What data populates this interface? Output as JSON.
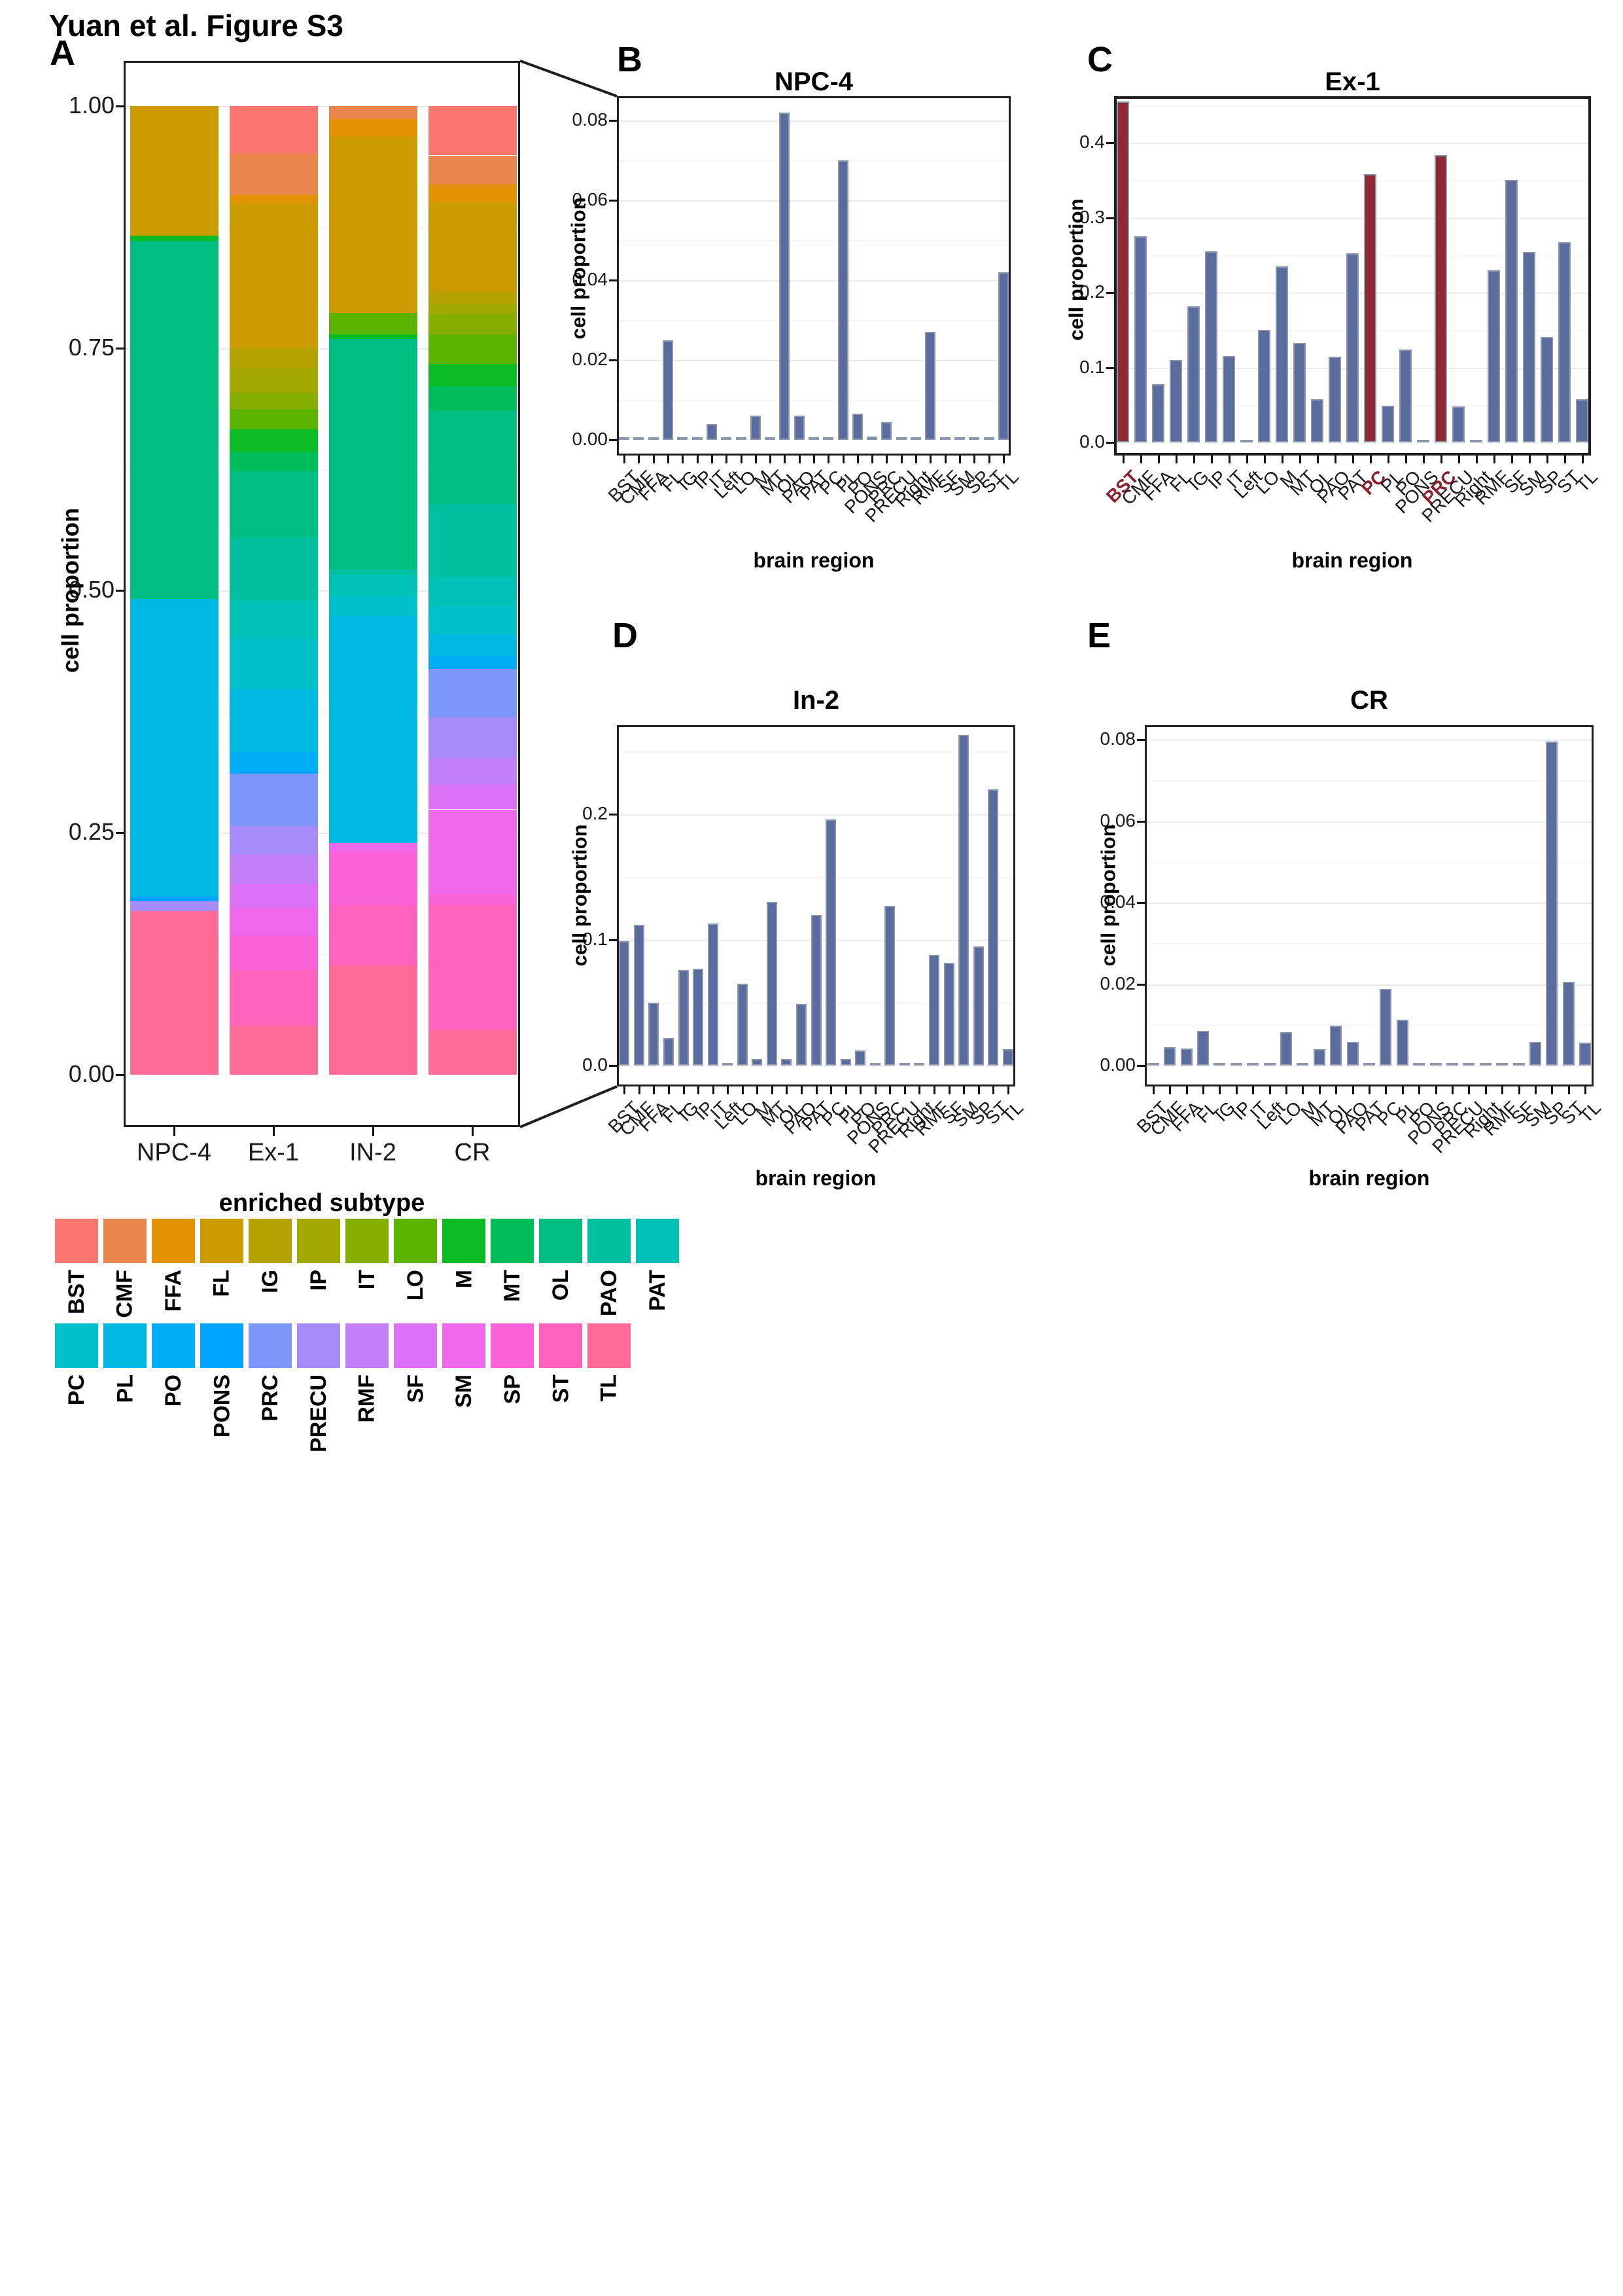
{
  "page": {
    "title": "Yuan et al. Figure S3"
  },
  "region_colors": {
    "BST": "#F8766D",
    "CMF": "#E9864B",
    "FFA": "#E29100",
    "FL": "#CB9B00",
    "IG": "#B4A200",
    "IP": "#A4A900",
    "IT": "#84AD00",
    "LO": "#5BB300",
    "M": "#0ABB23",
    "MT": "#00BC59",
    "OL": "#00BE80",
    "PAO": "#00C0A0",
    "PAT": "#00C1B6",
    "PC": "#00C0CC",
    "PL": "#00B9E3",
    "PO": "#00AEF5",
    "PONS": "#00A3FF",
    "PRC": "#7D96FA",
    "PRECU": "#A78BFA",
    "RMF": "#C27FF8",
    "SF": "#DB72F5",
    "SM": "#EE68E9",
    "SP": "#FA62D7",
    "ST": "#FF63BB",
    "TL": "#FF6B94"
  },
  "style": {
    "bar_fill": "#5A6B9D",
    "bar_stroke": "#8C97AC",
    "bar_highlight": "#8F2A35",
    "red_label": "#8B1F2C",
    "grid_major": "#EBEBEB",
    "grid_minor": "#F5F5F5",
    "box_border": "#1f1f1f"
  },
  "chart_data": [
    {
      "id": "A",
      "panel_letter": "A",
      "type": "bar",
      "stacked": true,
      "title": "",
      "xlabel": "enriched subtype",
      "ylabel": "cell proportion",
      "categories": [
        "NPC-4",
        "Ex-1",
        "IN-2",
        "CR"
      ],
      "ylim": [
        0,
        1
      ],
      "yticks": [
        {
          "v": 0,
          "label": "0.00"
        },
        {
          "v": 0.25,
          "label": "0.25"
        },
        {
          "v": 0.5,
          "label": "0.50"
        },
        {
          "v": 0.75,
          "label": "0.75"
        },
        {
          "v": 1,
          "label": "1.00"
        }
      ],
      "yminor": [
        0.125,
        0.375,
        0.625,
        0.875
      ],
      "series": [
        {
          "name": "BST",
          "values": [
            0,
            0.049,
            0,
            0.051
          ]
        },
        {
          "name": "CMF",
          "values": [
            0,
            0.043,
            0.0135,
            0.03
          ]
        },
        {
          "name": "FFA",
          "values": [
            0,
            0.008,
            0.018,
            0.018
          ]
        },
        {
          "name": "FL",
          "values": [
            0.134,
            0.15,
            0.182,
            0.093
          ]
        },
        {
          "name": "IG",
          "values": [
            0,
            0.021,
            0,
            0.012
          ]
        },
        {
          "name": "IP",
          "values": [
            0,
            0.025,
            0,
            0.01
          ]
        },
        {
          "name": "IT",
          "values": [
            0,
            0.017,
            0,
            0.022
          ]
        },
        {
          "name": "LO",
          "values": [
            0,
            0.021,
            0.022,
            0.03
          ]
        },
        {
          "name": "M",
          "values": [
            0.005,
            0.023,
            0.005,
            0.023
          ]
        },
        {
          "name": "MT",
          "values": [
            0,
            0.02,
            0,
            0.025
          ]
        },
        {
          "name": "OL",
          "values": [
            0.37,
            0.068,
            0.238,
            0.097
          ]
        },
        {
          "name": "PAO",
          "values": [
            0,
            0.065,
            0.005,
            0.075
          ]
        },
        {
          "name": "PAT",
          "values": [
            0,
            0.04,
            0.022,
            0.03
          ]
        },
        {
          "name": "PC",
          "values": [
            0,
            0.052,
            0.021,
            0.03
          ]
        },
        {
          "name": "PL",
          "values": [
            0.307,
            0.065,
            0.2345,
            0.022
          ]
        },
        {
          "name": "PO",
          "values": [
            0,
            0.02,
            0,
            0.011
          ]
        },
        {
          "name": "PONS",
          "values": [
            0.005,
            0.002,
            0,
            0.002
          ]
        },
        {
          "name": "PRC",
          "values": [
            0,
            0.054,
            0,
            0.05
          ]
        },
        {
          "name": "PRECU",
          "values": [
            0.01,
            0.03,
            0,
            0.042
          ]
        },
        {
          "name": "RMF",
          "values": [
            0,
            0.03,
            0,
            0.028
          ]
        },
        {
          "name": "SF",
          "values": [
            0,
            0.025,
            0,
            0.025
          ]
        },
        {
          "name": "SM",
          "values": [
            0,
            0.028,
            0.01,
            0.088
          ]
        },
        {
          "name": "SP",
          "values": [
            0,
            0.036,
            0.054,
            0.011
          ]
        },
        {
          "name": "ST",
          "values": [
            0,
            0.057,
            0.062,
            0.129
          ]
        },
        {
          "name": "TL",
          "values": [
            0.169,
            0.051,
            0.113,
            0.046
          ]
        }
      ]
    },
    {
      "id": "B",
      "panel_letter": "B",
      "type": "bar",
      "title": "NPC-4",
      "xlabel": "brain region",
      "ylabel": "cell proportion",
      "categories": [
        "BST",
        "CMF",
        "FFA",
        "FL",
        "IG",
        "IP",
        "IT",
        "Left",
        "LO",
        "M",
        "MT",
        "OL",
        "PAO",
        "PAT",
        "PC",
        "PL",
        "PO",
        "PONS",
        "PRC",
        "PRECU",
        "Right",
        "RMF",
        "SF",
        "SM",
        "SP",
        "ST",
        "TL"
      ],
      "values": [
        0.0002,
        0.0002,
        0.0002,
        0.025,
        0.0002,
        0.0002,
        0.004,
        0.0002,
        0.0002,
        0.006,
        0.0002,
        0.082,
        0.006,
        0.0002,
        0.0002,
        0.07,
        0.0065,
        0.0008,
        0.0045,
        0.0002,
        0.0002,
        0.027,
        0.0002,
        0.0002,
        0.0002,
        0.0002,
        0.042
      ],
      "ylim": [
        0,
        0.0861
      ],
      "yticks": [
        {
          "v": 0,
          "label": "0.00"
        },
        {
          "v": 0.02,
          "label": "0.02"
        },
        {
          "v": 0.04,
          "label": "0.04"
        },
        {
          "v": 0.06,
          "label": "0.06"
        },
        {
          "v": 0.08,
          "label": "0.08"
        }
      ],
      "yminor": [
        0.01,
        0.03,
        0.05,
        0.07
      ],
      "highlighted": []
    },
    {
      "id": "C",
      "panel_letter": "C",
      "type": "bar",
      "title": "Ex-1",
      "xlabel": "brain region",
      "ylabel": "cell proportion",
      "categories": [
        "BST",
        "CMF",
        "FFA",
        "FL",
        "IG",
        "IP",
        "IT",
        "Left",
        "LO",
        "M",
        "MT",
        "OL",
        "PAO",
        "PAT",
        "PC",
        "PL",
        "PO",
        "PONS",
        "PRC",
        "PRECU",
        "Right",
        "RMF",
        "SF",
        "SM",
        "SP",
        "ST",
        "TL"
      ],
      "values": [
        0.455,
        0.275,
        0.078,
        0.11,
        0.182,
        0.255,
        0.115,
        0.001,
        0.15,
        0.235,
        0.133,
        0.058,
        0.114,
        0.252,
        0.358,
        0.049,
        0.124,
        0.003,
        0.383,
        0.048,
        0.001,
        0.23,
        0.35,
        0.254,
        0.141,
        0.267,
        0.058
      ],
      "ylim": [
        0,
        0.462
      ],
      "yticks": [
        {
          "v": 0,
          "label": "0.0"
        },
        {
          "v": 0.1,
          "label": "0.1"
        },
        {
          "v": 0.2,
          "label": "0.2"
        },
        {
          "v": 0.3,
          "label": "0.3"
        },
        {
          "v": 0.4,
          "label": "0.4"
        }
      ],
      "yminor": [
        0.05,
        0.15,
        0.25,
        0.35,
        0.45
      ],
      "highlighted": [
        "BST",
        "PC",
        "PRC"
      ]
    },
    {
      "id": "D",
      "panel_letter": "D",
      "type": "bar",
      "title": "In-2",
      "xlabel": "brain region",
      "ylabel": "cell proportion",
      "categories": [
        "BST",
        "CMF",
        "FFA",
        "FL",
        "IG",
        "IP",
        "IT",
        "Left",
        "LO",
        "M",
        "MT",
        "OL",
        "PAO",
        "PAT",
        "PC",
        "PL",
        "PO",
        "PONS",
        "PRC",
        "PRECU",
        "Right",
        "RMF",
        "SF",
        "SM",
        "SP",
        "ST",
        "TL"
      ],
      "values": [
        0.099,
        0.112,
        0.05,
        0.022,
        0.076,
        0.077,
        0.113,
        0.001,
        0.065,
        0.005,
        0.13,
        0.005,
        0.049,
        0.12,
        0.196,
        0.005,
        0.012,
        0.001,
        0.127,
        0.001,
        0.001,
        0.088,
        0.082,
        0.263,
        0.095,
        0.22,
        0.013
      ],
      "ylim": [
        0,
        0.271
      ],
      "yticks": [
        {
          "v": 0,
          "label": "0.0"
        },
        {
          "v": 0.1,
          "label": "0.1"
        },
        {
          "v": 0.2,
          "label": "0.2"
        }
      ],
      "yminor": [
        0.05,
        0.15,
        0.25
      ],
      "highlighted": []
    },
    {
      "id": "E",
      "panel_letter": "E",
      "type": "bar",
      "title": "CR",
      "xlabel": "brain region",
      "ylabel": "cell proportion",
      "categories": [
        "BST",
        "CMF",
        "FFA",
        "FL",
        "IG",
        "IP",
        "IT",
        "Left",
        "LO",
        "M",
        "MT",
        "OL",
        "PAO",
        "PAT",
        "PC",
        "PL",
        "PO",
        "PONS",
        "PRC",
        "PRECU",
        "Right",
        "RMF",
        "SF",
        "SM",
        "SP",
        "ST",
        "TL"
      ],
      "values": [
        0.0003,
        0.0045,
        0.0042,
        0.0085,
        0.0003,
        0.0003,
        0.0003,
        0.0003,
        0.0082,
        0.0003,
        0.004,
        0.0098,
        0.0058,
        0.0003,
        0.0188,
        0.0112,
        0.0003,
        0.0003,
        0.0003,
        0.0003,
        0.0003,
        0.0003,
        0.0003,
        0.0058,
        0.0795,
        0.0205,
        0.0057
      ],
      "ylim": [
        0,
        0.0835
      ],
      "yticks": [
        {
          "v": 0,
          "label": "0.00"
        },
        {
          "v": 0.02,
          "label": "0.02"
        },
        {
          "v": 0.04,
          "label": "0.04"
        },
        {
          "v": 0.06,
          "label": "0.06"
        },
        {
          "v": 0.08,
          "label": "0.08"
        }
      ],
      "yminor": [
        0.01,
        0.03,
        0.05,
        0.07
      ],
      "highlighted": []
    }
  ],
  "legend": {
    "rows": [
      [
        "BST",
        "CMF",
        "FFA",
        "FL",
        "IG",
        "IP",
        "IT",
        "LO",
        "M",
        "MT",
        "OL",
        "PAO",
        "PAT"
      ],
      [
        "PC",
        "PL",
        "PO",
        "PONS",
        "PRC",
        "PRECU",
        "RMF",
        "SF",
        "SM",
        "SP",
        "ST",
        "TL"
      ]
    ]
  }
}
